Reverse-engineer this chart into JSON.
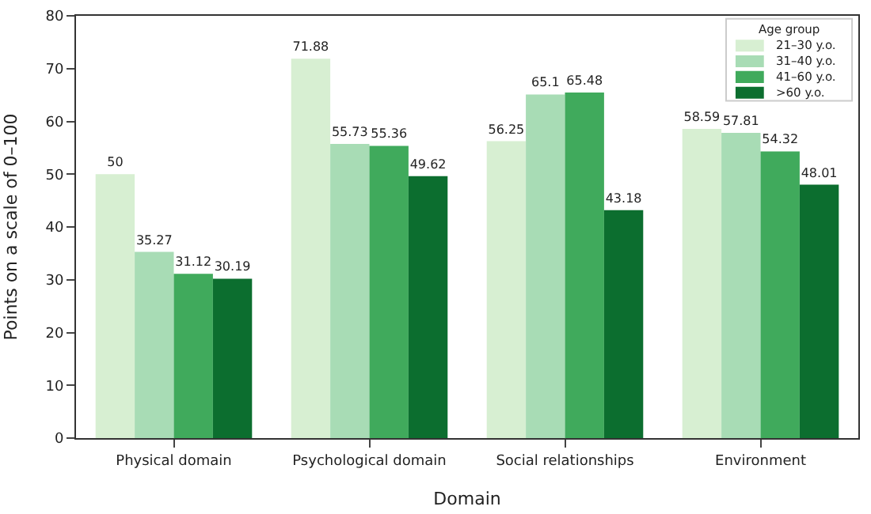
{
  "chart_data": {
    "type": "bar",
    "xlabel": "Domain",
    "ylabel": "Points on a scale of 0–100",
    "legend_title": "Age group",
    "categories": [
      "Physical domain",
      "Psychological domain",
      "Social relationships",
      "Environment"
    ],
    "series": [
      {
        "name": "21–30 y.o.",
        "color": "#d7efd2",
        "values": [
          50,
          71.88,
          56.25,
          58.59
        ]
      },
      {
        "name": "31–40 y.o.",
        "color": "#a8dcb5",
        "values": [
          35.27,
          55.73,
          65.1,
          57.81
        ]
      },
      {
        "name": "41–60 y.o.",
        "color": "#40aa5c",
        "values": [
          31.12,
          55.36,
          65.48,
          54.32
        ]
      },
      {
        "name": ">60 y.o.",
        "color": "#0c6e2f",
        "values": [
          30.19,
          49.62,
          43.18,
          48.01
        ]
      }
    ],
    "ylim": [
      0,
      80
    ],
    "yticks": [
      0,
      10,
      20,
      30,
      40,
      50,
      60,
      70,
      80
    ],
    "data_labels": true,
    "legend": "top right"
  }
}
